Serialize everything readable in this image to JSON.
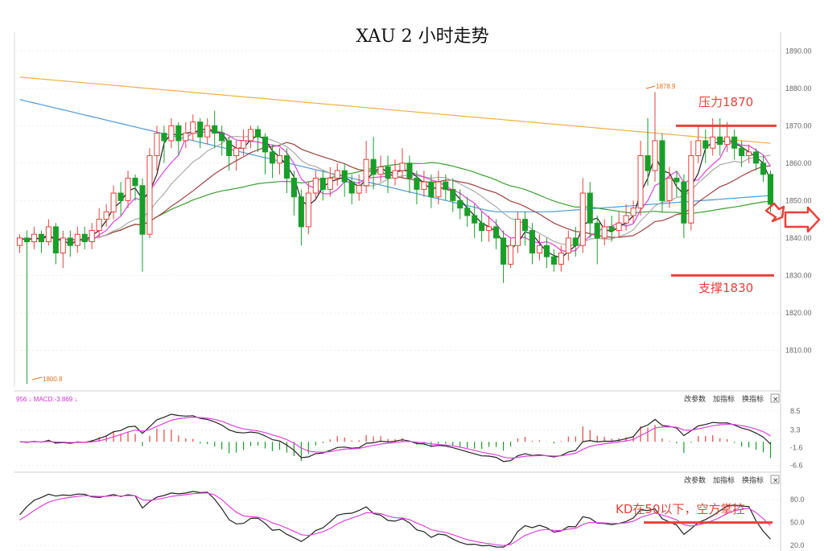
{
  "chart_data": [
    {
      "type": "candlestick",
      "title": "XAU 2 小时走势",
      "ylim": [
        1800,
        1895
      ],
      "y_ticks": [
        "1890.00",
        "1880.00",
        "1870.00",
        "1860.00",
        "1850.00",
        "1840.00",
        "1830.00",
        "1820.00",
        "1810.00"
      ],
      "y_tick_values": [
        1890,
        1880,
        1870,
        1860,
        1850,
        1840,
        1830,
        1820,
        1810
      ],
      "high_marker": "1878.9",
      "low_marker": "1800.8",
      "annotations": {
        "resistance": {
          "label": "压力1870",
          "value": 1870
        },
        "support": {
          "label": "支撑1830",
          "value": 1830
        }
      },
      "candles": [
        [
          1838,
          1840,
          1836,
          1841
        ],
        [
          1840,
          1839,
          1801,
          1842
        ],
        [
          1839,
          1841,
          1837,
          1843
        ],
        [
          1841,
          1839,
          1836,
          1842
        ],
        [
          1839,
          1843,
          1838,
          1845
        ],
        [
          1843,
          1836,
          1833,
          1844
        ],
        [
          1836,
          1840,
          1832,
          1842
        ],
        [
          1840,
          1838,
          1835,
          1842
        ],
        [
          1838,
          1841,
          1836,
          1843
        ],
        [
          1841,
          1839,
          1837,
          1843
        ],
        [
          1839,
          1842,
          1837,
          1844
        ],
        [
          1842,
          1845,
          1840,
          1848
        ],
        [
          1845,
          1847,
          1843,
          1849
        ],
        [
          1847,
          1852,
          1845,
          1854
        ],
        [
          1852,
          1850,
          1846,
          1855
        ],
        [
          1850,
          1856,
          1848,
          1858
        ],
        [
          1856,
          1854,
          1850,
          1857
        ],
        [
          1854,
          1841,
          1831,
          1856
        ],
        [
          1841,
          1862,
          1840,
          1864
        ],
        [
          1862,
          1868,
          1858,
          1870
        ],
        [
          1868,
          1866,
          1860,
          1870
        ],
        [
          1866,
          1870,
          1864,
          1872
        ],
        [
          1870,
          1866,
          1862,
          1871
        ],
        [
          1866,
          1868,
          1864,
          1871
        ],
        [
          1868,
          1871,
          1866,
          1873
        ],
        [
          1871,
          1867,
          1864,
          1872
        ],
        [
          1867,
          1870,
          1865,
          1872
        ],
        [
          1870,
          1868,
          1864,
          1874
        ],
        [
          1868,
          1866,
          1862,
          1870
        ],
        [
          1866,
          1862,
          1858,
          1867
        ],
        [
          1862,
          1864,
          1858,
          1866
        ],
        [
          1864,
          1866,
          1862,
          1869
        ],
        [
          1866,
          1869,
          1864,
          1870
        ],
        [
          1869,
          1867,
          1863,
          1870
        ],
        [
          1867,
          1863,
          1857,
          1868
        ],
        [
          1863,
          1860,
          1856,
          1865
        ],
        [
          1860,
          1862,
          1857,
          1864
        ],
        [
          1862,
          1856,
          1852,
          1864
        ],
        [
          1856,
          1851,
          1846,
          1858
        ],
        [
          1851,
          1843,
          1838,
          1853
        ],
        [
          1843,
          1852,
          1841,
          1855
        ],
        [
          1852,
          1856,
          1850,
          1858
        ],
        [
          1856,
          1853,
          1850,
          1858
        ],
        [
          1853,
          1856,
          1851,
          1859
        ],
        [
          1856,
          1858,
          1854,
          1860
        ],
        [
          1858,
          1855,
          1851,
          1860
        ],
        [
          1855,
          1852,
          1849,
          1857
        ],
        [
          1852,
          1854,
          1850,
          1857
        ],
        [
          1854,
          1861,
          1852,
          1866
        ],
        [
          1861,
          1857,
          1853,
          1867
        ],
        [
          1857,
          1859,
          1855,
          1862
        ],
        [
          1859,
          1856,
          1852,
          1862
        ],
        [
          1856,
          1858,
          1854,
          1861
        ],
        [
          1858,
          1860,
          1856,
          1864
        ],
        [
          1860,
          1856,
          1852,
          1862
        ],
        [
          1856,
          1853,
          1849,
          1858
        ],
        [
          1853,
          1855,
          1851,
          1858
        ],
        [
          1855,
          1851,
          1848,
          1857
        ],
        [
          1851,
          1855,
          1849,
          1858
        ],
        [
          1855,
          1853,
          1850,
          1857
        ],
        [
          1853,
          1850,
          1847,
          1856
        ],
        [
          1850,
          1848,
          1845,
          1853
        ],
        [
          1848,
          1846,
          1843,
          1851
        ],
        [
          1846,
          1844,
          1840,
          1849
        ],
        [
          1844,
          1842,
          1839,
          1847
        ],
        [
          1842,
          1843,
          1839,
          1846
        ],
        [
          1843,
          1840,
          1837,
          1845
        ],
        [
          1840,
          1833,
          1828,
          1842
        ],
        [
          1833,
          1838,
          1832,
          1840
        ],
        [
          1838,
          1845,
          1836,
          1847
        ],
        [
          1845,
          1842,
          1838,
          1847
        ],
        [
          1842,
          1836,
          1833,
          1844
        ],
        [
          1836,
          1838,
          1834,
          1841
        ],
        [
          1838,
          1835,
          1832,
          1840
        ],
        [
          1835,
          1833,
          1831,
          1837
        ],
        [
          1833,
          1836,
          1831,
          1838
        ],
        [
          1836,
          1840,
          1834,
          1842
        ],
        [
          1840,
          1838,
          1835,
          1843
        ],
        [
          1838,
          1852,
          1836,
          1856
        ],
        [
          1852,
          1844,
          1840,
          1855
        ],
        [
          1844,
          1840,
          1833,
          1846
        ],
        [
          1840,
          1843,
          1838,
          1845
        ],
        [
          1843,
          1842,
          1839,
          1846
        ],
        [
          1842,
          1844,
          1840,
          1847
        ],
        [
          1844,
          1846,
          1842,
          1849
        ],
        [
          1846,
          1848,
          1844,
          1850
        ],
        [
          1848,
          1862,
          1846,
          1866
        ],
        [
          1862,
          1858,
          1854,
          1872
        ],
        [
          1858,
          1866,
          1855,
          1879
        ],
        [
          1866,
          1850,
          1847,
          1868
        ],
        [
          1850,
          1856,
          1848,
          1859
        ],
        [
          1856,
          1855,
          1851,
          1858
        ],
        [
          1855,
          1844,
          1840,
          1857
        ],
        [
          1844,
          1862,
          1842,
          1866
        ],
        [
          1862,
          1866,
          1860,
          1870
        ],
        [
          1866,
          1864,
          1860,
          1869
        ],
        [
          1864,
          1867,
          1862,
          1872
        ],
        [
          1867,
          1865,
          1862,
          1872
        ],
        [
          1865,
          1867,
          1863,
          1871
        ],
        [
          1867,
          1864,
          1861,
          1869
        ],
        [
          1864,
          1862,
          1859,
          1866
        ],
        [
          1862,
          1863,
          1860,
          1865
        ],
        [
          1863,
          1860,
          1858,
          1864
        ],
        [
          1860,
          1857,
          1855,
          1862
        ],
        [
          1857,
          1849,
          1847,
          1858
        ]
      ]
    },
    {
      "type": "macd",
      "label": "956 ↓ MACD:-3.869 ↓",
      "y_ticks": [
        "8.5",
        "3.3",
        "-1.6",
        "-6.6"
      ],
      "y_tick_values": [
        8.5,
        3.3,
        -1.6,
        -6.6
      ],
      "ylim": [
        -8,
        11
      ]
    },
    {
      "type": "kd",
      "annotation": "KD在50以下，空方掌控",
      "y_ticks": [
        "80.0",
        "50.0",
        "20.0"
      ],
      "y_tick_values": [
        80,
        50,
        20
      ],
      "ylim": [
        15,
        100
      ],
      "threshold": 50
    }
  ],
  "panel_buttons": {
    "change_params": "改参数",
    "add_indicator": "加指标",
    "switch_indicator": "换指标",
    "close": "×"
  },
  "colors": {
    "up": "#e8413a",
    "down": "#1a9e2a",
    "ma5": "#222222",
    "ma10": "#e040e0",
    "ma20": "#aaaaaa",
    "ma30": "#a04040",
    "ma60": "#3aa030",
    "ma120": "#4a9ad8",
    "ma250": "#f0b040",
    "annotation": "#e8413a"
  }
}
